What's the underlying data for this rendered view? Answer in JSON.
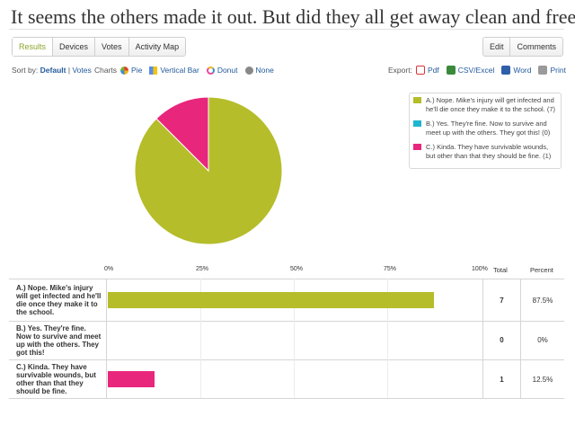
{
  "title": "It seems the others made it out. But did they all get away clean and free?",
  "tabs": [
    "Results",
    "Devices",
    "Votes",
    "Activity Map"
  ],
  "right_tabs": [
    "Edit",
    "Comments"
  ],
  "sort": {
    "label": "Sort by:",
    "default": "Default",
    "sep": "|",
    "votes": "Votes"
  },
  "charts": {
    "label": "Charts",
    "pie": "Pie",
    "vbar": "Vertical Bar",
    "donut": "Donut",
    "none": "None"
  },
  "export": {
    "label": "Export:",
    "pdf": "Pdf",
    "csv": "CSV/Excel",
    "word": "Word",
    "print": "Print"
  },
  "colors": {
    "a": "#b5bd2a",
    "b": "#1eb6cf",
    "c": "#e8267c"
  },
  "legend": [
    "A.) Nope. Mike's injury will get infected and he'll die once they make it to the school. (7)",
    "B.) Yes. They're fine. Now to survive and meet up with the others. They got this! (0)",
    "C.) Kinda. They have survivable wounds, but other than that they should be fine. (1)"
  ],
  "axis": [
    "0%",
    "25%",
    "50%",
    "75%",
    "100%"
  ],
  "headers": {
    "total": "Total",
    "percent": "Percent"
  },
  "rows": [
    {
      "label": "A.) Nope. Mike's injury will get infected and he'll die once they make it to the school.",
      "total": "7",
      "percent": "87.5%"
    },
    {
      "label": "B.) Yes. They're fine. Now to survive and meet up with the others. They got this!",
      "total": "0",
      "percent": "0%"
    },
    {
      "label": "C.) Kinda. They have survivable wounds, but other than that they should be fine.",
      "total": "1",
      "percent": "12.5%"
    }
  ],
  "chart_data": {
    "type": "pie",
    "categories": [
      "A.)",
      "B.)",
      "C.)"
    ],
    "values": [
      7,
      0,
      1
    ],
    "percentages": [
      87.5,
      0,
      12.5
    ]
  }
}
